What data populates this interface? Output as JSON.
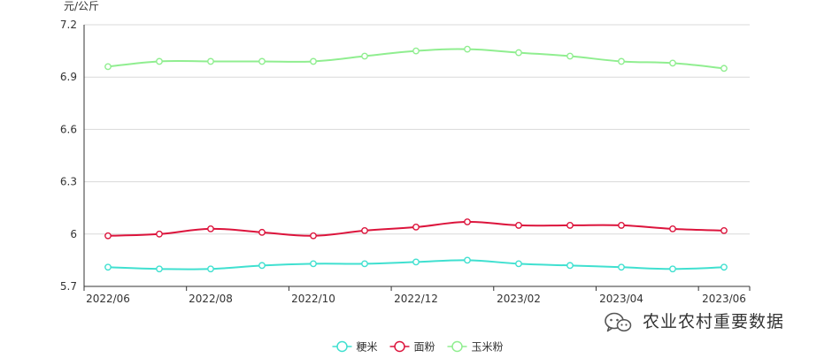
{
  "chart_data": {
    "type": "line",
    "smooth": true,
    "ylabel": "元/公斤",
    "ylim": [
      5.7,
      7.2
    ],
    "yticks": [
      5.7,
      6,
      6.3,
      6.6,
      6.9,
      7.2
    ],
    "ytick_labels": [
      "5.7",
      "6",
      "6.3",
      "6.6",
      "6.9",
      "7.2"
    ],
    "categories": [
      "2022/06",
      "2022/07",
      "2022/08",
      "2022/09",
      "2022/10",
      "2022/11",
      "2022/12",
      "2023/01",
      "2023/02",
      "2023/03",
      "2023/04",
      "2023/05",
      "2023/06"
    ],
    "xtick_labels": [
      "2022/06",
      "2022/08",
      "2022/10",
      "2022/12",
      "2023/02",
      "2023/04",
      "2023/06"
    ],
    "grid": true,
    "legend_position": "bottom-center",
    "series": [
      {
        "name": "粳米",
        "color": "#40e0d0",
        "values": [
          5.81,
          5.8,
          5.8,
          5.82,
          5.83,
          5.83,
          5.84,
          5.85,
          5.83,
          5.82,
          5.81,
          5.8,
          5.81
        ]
      },
      {
        "name": "面粉",
        "color": "#dc143c",
        "values": [
          5.99,
          6.0,
          6.03,
          6.01,
          5.99,
          6.02,
          6.04,
          6.07,
          6.05,
          6.05,
          6.05,
          6.03,
          6.02
        ]
      },
      {
        "name": "玉米粉",
        "color": "#90ee90",
        "values": [
          6.96,
          6.99,
          6.99,
          6.99,
          6.99,
          7.02,
          7.05,
          7.06,
          7.04,
          7.02,
          6.99,
          6.98,
          6.95
        ]
      }
    ]
  },
  "watermark": {
    "text": "农业农村重要数据",
    "icon": "wechat-icon"
  }
}
